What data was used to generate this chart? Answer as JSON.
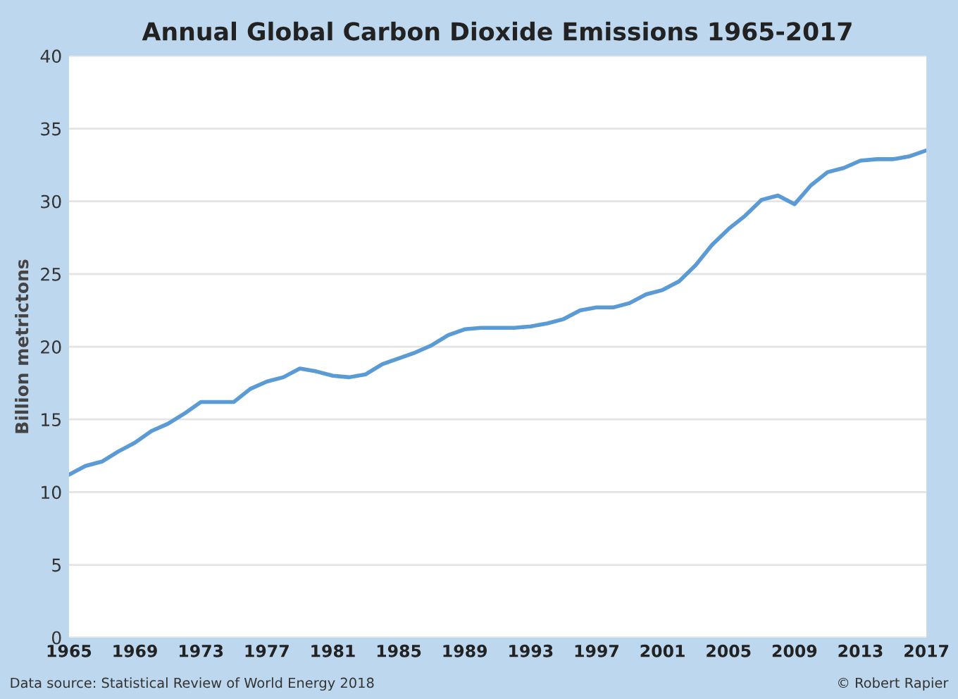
{
  "chart_data": {
    "type": "line",
    "title": "Annual Global Carbon Dioxide Emissions 1965-2017",
    "ylabel": "Billion metrictons",
    "x": [
      1965,
      1966,
      1967,
      1968,
      1969,
      1970,
      1971,
      1972,
      1973,
      1974,
      1975,
      1976,
      1977,
      1978,
      1979,
      1980,
      1981,
      1982,
      1983,
      1984,
      1985,
      1986,
      1987,
      1988,
      1989,
      1990,
      1991,
      1992,
      1993,
      1994,
      1995,
      1996,
      1997,
      1998,
      1999,
      2000,
      2001,
      2002,
      2003,
      2004,
      2005,
      2006,
      2007,
      2008,
      2009,
      2010,
      2011,
      2012,
      2013,
      2014,
      2015,
      2016,
      2017
    ],
    "series": [
      {
        "color": "#5b9bd5",
        "values": [
          11.2,
          11.8,
          12.1,
          12.8,
          13.4,
          14.2,
          14.7,
          15.4,
          16.2,
          16.2,
          16.2,
          17.1,
          17.6,
          17.9,
          18.5,
          18.3,
          18.0,
          17.9,
          18.1,
          18.8,
          19.2,
          19.6,
          20.1,
          20.8,
          21.2,
          21.3,
          21.3,
          21.3,
          21.4,
          21.6,
          21.9,
          22.5,
          22.7,
          22.7,
          23.0,
          23.6,
          23.9,
          24.5,
          25.6,
          27.0,
          28.1,
          29.0,
          30.1,
          30.4,
          29.8,
          31.1,
          32.0,
          32.3,
          32.8,
          32.9,
          32.9,
          33.1,
          33.5
        ]
      }
    ],
    "xlim": [
      1965,
      2017
    ],
    "xticks": [
      1965,
      1969,
      1973,
      1977,
      1981,
      1985,
      1989,
      1993,
      1997,
      2001,
      2005,
      2009,
      2013,
      2017
    ],
    "ylim": [
      0,
      40
    ],
    "yticks": [
      0,
      5,
      10,
      15,
      20,
      25,
      30,
      35,
      40
    ],
    "grid": "y",
    "marker": "none",
    "line_style": "solid",
    "annotations": [
      "Data source: Statistical Review of World Energy 2018",
      "© Robert Rapier"
    ]
  }
}
